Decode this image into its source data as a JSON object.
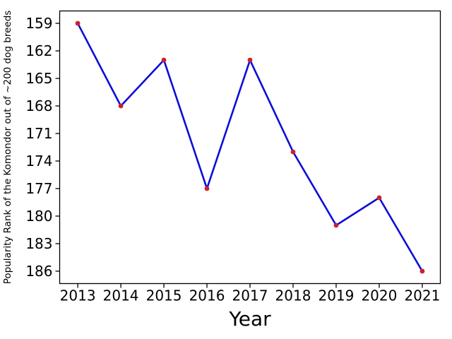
{
  "figure": {
    "background": "#ffffff"
  },
  "chart_data": {
    "type": "line",
    "title": "",
    "xlabel": "Year",
    "ylabel": "Popularity Rank of the Komondor out of ~200 dog breeds",
    "x": [
      2013,
      2014,
      2015,
      2016,
      2017,
      2018,
      2019,
      2020,
      2021
    ],
    "series": [
      {
        "name": "Komondor popularity rank",
        "values": [
          159,
          168,
          163,
          177,
          163,
          173,
          181,
          178,
          186
        ],
        "line_color": "#0d0dd8",
        "line_width": 2.6,
        "marker": "circle",
        "marker_color": "#c92132",
        "marker_radius": 3.4
      }
    ],
    "x_tick_labels": [
      "2013",
      "2014",
      "2015",
      "2016",
      "2017",
      "2018",
      "2019",
      "2020",
      "2021"
    ],
    "y_tick_labels": [
      "159",
      "162",
      "165",
      "168",
      "171",
      "174",
      "177",
      "180",
      "183",
      "186"
    ],
    "xlim": [
      2012.58,
      2021.42
    ],
    "ylim_top_to_bottom": [
      157.65,
      187.35
    ],
    "y_axis_inverted": true,
    "grid": false,
    "legend": false,
    "axis_color": "#000000"
  }
}
